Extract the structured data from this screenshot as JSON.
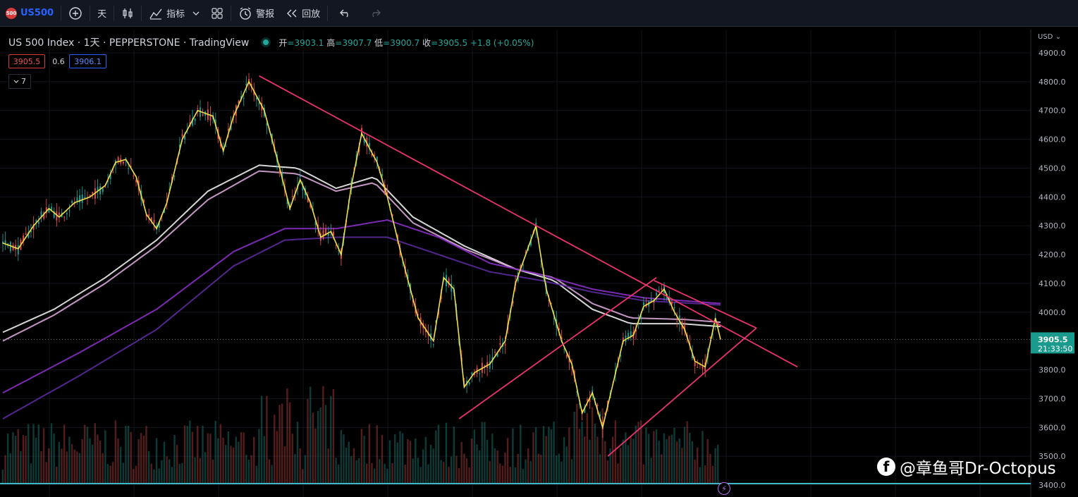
{
  "toolbar": {
    "symbol_badge": "500",
    "symbol": "US500",
    "interval": "天",
    "indicators_label": "指标",
    "alert_label": "警报",
    "replay_label": "回放",
    "icons": [
      "add-symbol-icon",
      "candlestick-icon",
      "indicators-icon",
      "chevron-down-icon",
      "layout-grid-icon",
      "alert-clock-icon",
      "replay-icon",
      "undo-icon",
      "redo-icon"
    ]
  },
  "legend": {
    "title": "US 500 Index · 1天 · PEPPERSTONE · TradingView",
    "open_label": "开",
    "open": "=3903.1",
    "high_label": "高",
    "high": "=3907.7",
    "low_label": "低",
    "low": "=3900.7",
    "close_label": "收",
    "close": "=3905.5",
    "change": "+1.8 (+0.05%)"
  },
  "quote": {
    "sell": "3905.5",
    "spread": "0.6",
    "buy": "3906.1"
  },
  "collapse_count": "7",
  "price_axis": {
    "currency": "USD",
    "ticks": [
      "4900.0",
      "4800.0",
      "4700.0",
      "4600.0",
      "4500.0",
      "4400.0",
      "4300.0",
      "4200.0",
      "4100.0",
      "4000.0",
      "3800.0",
      "3700.0",
      "3600.0",
      "3500.0",
      "3400.0"
    ],
    "last_price": "3905.5",
    "countdown": "21:33:50"
  },
  "watermark": "@章鱼哥Dr-Octopus",
  "colors": {
    "background": "#000000",
    "trendline": "#e8336b",
    "price_line": "#f0e04c",
    "ma_white": "#eeeeee",
    "ma_pink": "#d8a6d8",
    "ma_purple": "#8a2fc6",
    "ma_dark_purple": "#5b2a9c",
    "up": "#26a69a",
    "down": "#ef5350",
    "last_price_bg": "#1a9a8c",
    "support_line": "#3fb7c7"
  },
  "chart_data": {
    "type": "line",
    "title": "US 500 Index · 1天 · PEPPERSTONE · TradingView",
    "ylim": [
      3395,
      4935
    ],
    "x_range": [
      0,
      280
    ],
    "last": 3905.5,
    "series": [
      {
        "values": [
          [
            0,
            4240
          ],
          [
            6,
            4220
          ],
          [
            12,
            4300
          ],
          [
            18,
            4360
          ],
          [
            22,
            4330
          ],
          [
            28,
            4380
          ],
          [
            34,
            4400
          ],
          [
            40,
            4440
          ],
          [
            44,
            4520
          ],
          [
            48,
            4530
          ],
          [
            52,
            4470
          ],
          [
            56,
            4340
          ],
          [
            60,
            4290
          ],
          [
            64,
            4380
          ],
          [
            70,
            4600
          ],
          [
            76,
            4700
          ],
          [
            82,
            4680
          ],
          [
            86,
            4560
          ],
          [
            90,
            4680
          ],
          [
            96,
            4800
          ],
          [
            102,
            4700
          ],
          [
            108,
            4500
          ],
          [
            112,
            4360
          ],
          [
            116,
            4460
          ],
          [
            120,
            4380
          ],
          [
            124,
            4260
          ],
          [
            128,
            4280
          ],
          [
            132,
            4200
          ],
          [
            136,
            4440
          ],
          [
            140,
            4620
          ],
          [
            146,
            4520
          ],
          [
            150,
            4400
          ],
          [
            156,
            4180
          ],
          [
            162,
            3980
          ],
          [
            168,
            3900
          ],
          [
            172,
            4120
          ],
          [
            176,
            4080
          ],
          [
            180,
            3740
          ],
          [
            184,
            3790
          ],
          [
            190,
            3820
          ],
          [
            196,
            3900
          ],
          [
            200,
            4100
          ],
          [
            204,
            4200
          ],
          [
            208,
            4300
          ],
          [
            212,
            4080
          ],
          [
            218,
            3900
          ],
          [
            222,
            3820
          ],
          [
            226,
            3650
          ],
          [
            230,
            3720
          ],
          [
            234,
            3600
          ],
          [
            238,
            3750
          ],
          [
            242,
            3900
          ],
          [
            246,
            3920
          ],
          [
            250,
            4020
          ],
          [
            254,
            4040
          ],
          [
            258,
            4080
          ],
          [
            262,
            4000
          ],
          [
            266,
            3940
          ],
          [
            270,
            3830
          ],
          [
            274,
            3810
          ],
          [
            278,
            3980
          ],
          [
            280,
            3905
          ]
        ]
      },
      {
        "values": [
          [
            0,
            3930
          ],
          [
            20,
            4010
          ],
          [
            40,
            4120
          ],
          [
            60,
            4250
          ],
          [
            80,
            4420
          ],
          [
            100,
            4510
          ],
          [
            115,
            4500
          ],
          [
            130,
            4430
          ],
          [
            145,
            4470
          ],
          [
            160,
            4330
          ],
          [
            180,
            4230
          ],
          [
            200,
            4150
          ],
          [
            215,
            4110
          ],
          [
            230,
            4010
          ],
          [
            245,
            3960
          ],
          [
            265,
            3960
          ],
          [
            280,
            3950
          ]
        ]
      },
      {
        "values": [
          [
            0,
            3900
          ],
          [
            20,
            3990
          ],
          [
            40,
            4100
          ],
          [
            60,
            4230
          ],
          [
            80,
            4390
          ],
          [
            100,
            4490
          ],
          [
            115,
            4480
          ],
          [
            130,
            4420
          ],
          [
            145,
            4450
          ],
          [
            160,
            4310
          ],
          [
            180,
            4220
          ],
          [
            200,
            4150
          ],
          [
            215,
            4120
          ],
          [
            230,
            4030
          ],
          [
            245,
            3980
          ],
          [
            265,
            3975
          ],
          [
            280,
            3965
          ]
        ]
      },
      {
        "values": [
          [
            0,
            3720
          ],
          [
            30,
            3860
          ],
          [
            60,
            4010
          ],
          [
            90,
            4210
          ],
          [
            110,
            4290
          ],
          [
            130,
            4290
          ],
          [
            150,
            4320
          ],
          [
            170,
            4260
          ],
          [
            190,
            4170
          ],
          [
            210,
            4130
          ],
          [
            230,
            4080
          ],
          [
            250,
            4050
          ],
          [
            280,
            4030
          ]
        ]
      },
      {
        "values": [
          [
            0,
            3630
          ],
          [
            30,
            3780
          ],
          [
            60,
            3940
          ],
          [
            90,
            4160
          ],
          [
            110,
            4250
          ],
          [
            130,
            4260
          ],
          [
            150,
            4260
          ],
          [
            170,
            4200
          ],
          [
            190,
            4140
          ],
          [
            210,
            4110
          ],
          [
            230,
            4070
          ],
          [
            250,
            4040
          ],
          [
            280,
            4025
          ]
        ]
      }
    ],
    "trendlines": [
      {
        "from": [
          100,
          4820
        ],
        "to": [
          310,
          3810
        ]
      },
      {
        "from": [
          178,
          3630
        ],
        "to": [
          255,
          4120
        ]
      },
      {
        "from": [
          236,
          3500
        ],
        "to": [
          294,
          3945
        ]
      },
      {
        "from": [
          254,
          4110
        ],
        "to": [
          294,
          3945
        ]
      }
    ],
    "support_level": 3405,
    "volume_bars": 280
  }
}
